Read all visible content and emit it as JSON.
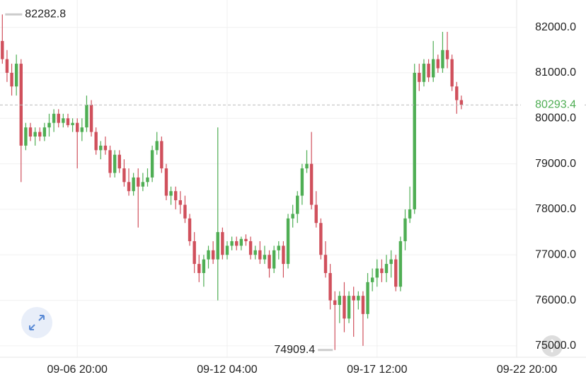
{
  "chart_data": {
    "type": "candlestick",
    "up_color": "#4fae54",
    "down_color": "#d0505c",
    "open": [
      81700,
      81300,
      81000,
      80700,
      81200,
      79400,
      79800,
      79600,
      79700,
      79600,
      79800,
      79900,
      80100,
      79900,
      80000,
      79850,
      79900,
      79700,
      79800,
      80300,
      79700,
      79300,
      79400,
      79300,
      78800,
      79200,
      78900,
      78600,
      78400,
      78700,
      78500,
      78600,
      78700,
      79300,
      79500,
      78900,
      78300,
      78400,
      78200,
      78100,
      77800,
      77300,
      76800,
      76600,
      76900,
      77100,
      76900,
      77500,
      77000,
      77200,
      77300,
      77200,
      77350,
      77300,
      77000,
      77100,
      76900,
      77000,
      76700,
      77100,
      77200,
      76800,
      77800,
      77900,
      78300,
      78900,
      79000,
      78100,
      77700,
      77000,
      76600,
      76000,
      75900,
      76100,
      75600,
      76100,
      76000,
      76100,
      75700,
      76400,
      76500,
      76700,
      76600,
      76800,
      76900,
      76300,
      77300,
      77800,
      78000,
      81000,
      80800,
      81200,
      80900,
      81300,
      81100,
      81500,
      81300,
      80700,
      80400
    ],
    "high": [
      82282.8,
      81500,
      81200,
      81400,
      81300,
      79900,
      79900,
      79800,
      79800,
      79900,
      80100,
      80200,
      80200,
      80100,
      80100,
      80000,
      80000,
      80000,
      80500,
      80400,
      79800,
      79500,
      79600,
      79400,
      79300,
      79300,
      79100,
      78900,
      78800,
      78900,
      78800,
      78900,
      79400,
      79700,
      79600,
      79000,
      78500,
      78500,
      78400,
      78300,
      77900,
      77500,
      77000,
      77000,
      77200,
      77300,
      79800,
      77600,
      77300,
      77400,
      77400,
      77400,
      77450,
      77400,
      77200,
      77300,
      77200,
      77100,
      77200,
      77300,
      77300,
      77900,
      78100,
      78400,
      79000,
      79300,
      79700,
      78400,
      77800,
      77300,
      76800,
      76200,
      76200,
      76400,
      76200,
      76300,
      76200,
      76200,
      76600,
      76700,
      76900,
      76900,
      77000,
      77100,
      77000,
      77400,
      78000,
      78500,
      81200,
      81200,
      81300,
      81300,
      81700,
      81400,
      81900,
      81900,
      81400,
      80800,
      80500
    ],
    "low": [
      81200,
      80800,
      80500,
      80500,
      78600,
      79300,
      79500,
      79400,
      79500,
      79500,
      79600,
      79700,
      79800,
      79800,
      79800,
      79700,
      78900,
      79500,
      79700,
      79600,
      79200,
      79100,
      79200,
      78700,
      78700,
      78800,
      78500,
      78300,
      78300,
      77600,
      78400,
      78500,
      78600,
      79200,
      78800,
      78200,
      78100,
      78000,
      77900,
      77700,
      77200,
      76600,
      76400,
      76300,
      76700,
      76800,
      76000,
      76900,
      76900,
      77100,
      77100,
      77100,
      77200,
      76900,
      76900,
      76800,
      76800,
      76500,
      76600,
      76900,
      76500,
      76700,
      77600,
      77700,
      78100,
      78800,
      78000,
      77600,
      76900,
      76500,
      75800,
      74909.4,
      75500,
      75300,
      75500,
      75200,
      75800,
      75000,
      75600,
      76200,
      76300,
      76400,
      76400,
      76500,
      76200,
      76200,
      77100,
      77700,
      77900,
      80600,
      80700,
      80800,
      80800,
      81000,
      81000,
      81100,
      80600,
      80100,
      80200
    ],
    "close": [
      81300,
      81000,
      80700,
      81200,
      79400,
      79800,
      79600,
      79700,
      79600,
      79800,
      79900,
      80100,
      79900,
      80000,
      79850,
      79900,
      79700,
      79800,
      80300,
      79700,
      79300,
      79400,
      79300,
      78800,
      79200,
      78900,
      78600,
      78400,
      78700,
      78500,
      78600,
      78700,
      79300,
      79500,
      78900,
      78300,
      78400,
      78200,
      78100,
      77800,
      77300,
      76800,
      76600,
      76900,
      77100,
      76900,
      77500,
      77000,
      77200,
      77300,
      77200,
      77350,
      77300,
      77000,
      77100,
      76900,
      77000,
      76700,
      77100,
      77200,
      76800,
      77800,
      77900,
      78300,
      78900,
      79000,
      78100,
      77700,
      77000,
      76600,
      76000,
      75900,
      76100,
      75600,
      76100,
      76000,
      76100,
      75700,
      76400,
      76500,
      76700,
      76600,
      76800,
      76900,
      76300,
      77300,
      77800,
      78000,
      81000,
      80800,
      81200,
      80900,
      81300,
      81100,
      81500,
      81300,
      80700,
      80400,
      80293.4
    ],
    "xlim": [
      -0.5,
      109.8
    ],
    "xticks": [
      {
        "value": 16,
        "label": "09-06 20:00"
      },
      {
        "value": 48,
        "label": "09-12 04:00"
      },
      {
        "value": 80,
        "label": "09-17 12:00"
      },
      {
        "value": 112,
        "label": "09-22 20:00"
      }
    ],
    "ylim": [
      74750,
      82600
    ],
    "yticks": [
      {
        "value": 75000,
        "label": "75000.0"
      },
      {
        "value": 76000,
        "label": "76000.0"
      },
      {
        "value": 77000,
        "label": "77000.0"
      },
      {
        "value": 78000,
        "label": "78000.0"
      },
      {
        "value": 79000,
        "label": "79000.0"
      },
      {
        "value": 80000,
        "label": "80000.0"
      },
      {
        "value": 81000,
        "label": "81000.0"
      },
      {
        "value": 82000,
        "label": "82000.0"
      }
    ],
    "grid": true
  }
}
